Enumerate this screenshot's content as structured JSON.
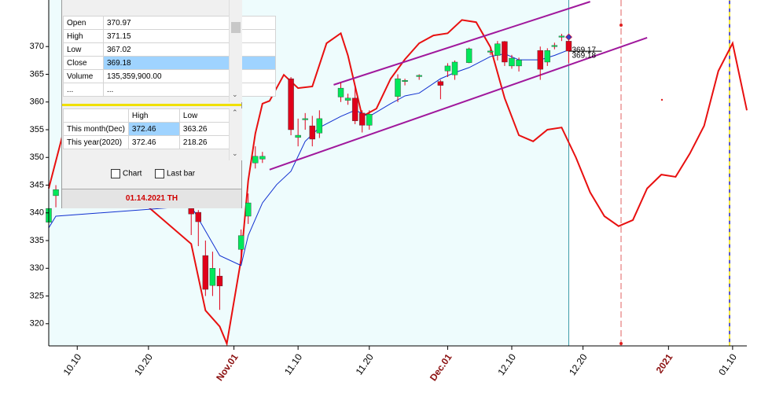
{
  "chart_data": {
    "type": "candlestick",
    "xlim": [
      "10.06",
      "01.12"
    ],
    "ylim": [
      316,
      378.4
    ],
    "yticks": [
      320,
      325,
      330,
      335,
      340,
      345,
      350,
      355,
      360,
      365,
      370
    ],
    "xticks": [
      "10.10",
      "10.20",
      {
        "value": "11.01",
        "label": "Nov.01"
      },
      "11.10",
      "11.20",
      {
        "value": "12.01",
        "label": "Dec.01"
      },
      "12.10",
      "12.20",
      {
        "value": "01.01",
        "label": "2021"
      },
      "01.10"
    ],
    "up_color": "#00e85a",
    "down_color": "#e0001a",
    "ohlc": {
      "x": [
        "10.06",
        "10.07",
        "10.26",
        "10.27",
        "10.28",
        "10.29",
        "10.30",
        "11.02",
        "11.03",
        "11.04",
        "11.05",
        "11.09",
        "11.10",
        "11.11",
        "11.12",
        "11.13",
        "11.16",
        "11.17",
        "11.18",
        "11.19",
        "11.20",
        "11.24",
        "11.25",
        "11.27",
        "11.30",
        "12.01",
        "12.02",
        "12.04",
        "12.07",
        "12.08",
        "12.09",
        "12.10",
        "12.11",
        "12.14",
        "12.15",
        "12.16",
        "12.17",
        "12.18"
      ],
      "open": [
        338.3,
        343.1,
        340.8,
        340.1,
        332.3,
        326.9,
        328.6,
        333.4,
        339.4,
        349.0,
        349.7,
        364.2,
        353.6,
        356.8,
        355.7,
        354.4,
        360.9,
        360.3,
        360.7,
        358.0,
        355.8,
        361.0,
        363.7,
        364.6,
        363.7,
        365.6,
        364.9,
        367.1,
        369.0,
        368.4,
        370.9,
        366.5,
        366.5,
        369.3,
        367.2,
        370.0,
        371.7,
        370.97
      ],
      "high": [
        342.0,
        345.0,
        341.5,
        340.5,
        335.0,
        333.0,
        330.0,
        337.0,
        343.5,
        352.0,
        351.0,
        364.5,
        357.0,
        358.0,
        357.5,
        358.5,
        363.5,
        361.5,
        363.0,
        358.5,
        358.5,
        365.0,
        364.2,
        365.0,
        364.0,
        367.0,
        367.5,
        369.8,
        369.5,
        371.0,
        371.0,
        368.5,
        368.0,
        370.0,
        369.7,
        370.7,
        372.3,
        371.15
      ],
      "low": [
        337.0,
        341.0,
        336.0,
        334.0,
        325.0,
        325.0,
        322.5,
        331.0,
        338.0,
        348.0,
        349.0,
        354.0,
        352.0,
        355.0,
        352.0,
        353.5,
        360.0,
        359.5,
        356.0,
        354.5,
        355.0,
        360.0,
        363.0,
        364.0,
        360.5,
        364.5,
        364.0,
        367.0,
        368.5,
        367.5,
        366.5,
        366.0,
        365.5,
        364.0,
        366.5,
        369.5,
        371.0,
        367.02
      ],
      "close": [
        340.8,
        344.2,
        339.8,
        338.4,
        326.2,
        330.0,
        326.8,
        335.9,
        341.8,
        350.2,
        350.2,
        355.0,
        354.0,
        357.0,
        353.3,
        357.0,
        362.5,
        360.7,
        356.6,
        355.8,
        357.8,
        364.2,
        363.9,
        364.8,
        363.0,
        366.5,
        367.2,
        369.6,
        369.2,
        370.5,
        367.2,
        367.9,
        367.6,
        365.9,
        369.3,
        370.2,
        371.9,
        369.18
      ]
    },
    "lines": [
      {
        "color": "#e81010",
        "width": 2,
        "x": [
          "10.06",
          "10.08",
          "10.26",
          "10.28",
          "10.30",
          "10.31",
          "11.02",
          "11.03",
          "11.04",
          "11.05",
          "11.06",
          "11.08",
          "11.10",
          "11.12",
          "11.14",
          "11.16",
          "11.17",
          "11.19",
          "11.21",
          "11.23",
          "11.25",
          "11.27",
          "11.29",
          "12.01",
          "12.03",
          "12.05",
          "12.07",
          "12.09",
          "12.11",
          "12.13",
          "12.15",
          "12.17",
          "12.19",
          "12.21",
          "12.23",
          "12.25",
          "12.27",
          "12.29",
          "12.31",
          "01.02",
          "01.04",
          "01.06",
          "01.08",
          "01.10",
          "01.12"
        ],
        "values": [
          344.4,
          354.3,
          334.4,
          322.4,
          319.5,
          316.4,
          331.6,
          345.8,
          354.3,
          359.7,
          360.2,
          364.9,
          362.5,
          362.8,
          370.6,
          372.4,
          368.4,
          357.4,
          358.8,
          364.2,
          367.7,
          370.6,
          372.0,
          372.4,
          374.8,
          374.4,
          369.9,
          360.7,
          354.0,
          352.9,
          355.0,
          355.4,
          350.0,
          343.7,
          339.4,
          337.6,
          338.7,
          344.4,
          346.9,
          346.5,
          350.7,
          355.7,
          365.6,
          370.6,
          358.5
        ]
      },
      {
        "color": "#1030d0",
        "width": 1,
        "x": [
          "10.06",
          "10.07",
          "10.26",
          "10.30",
          "11.02",
          "11.03",
          "11.05",
          "11.07",
          "11.09",
          "11.11",
          "11.13",
          "11.16",
          "11.18",
          "11.20",
          "11.23",
          "11.25",
          "11.27",
          "11.30",
          "12.02",
          "12.04",
          "12.07",
          "12.09",
          "12.11",
          "12.14",
          "12.16",
          "12.18"
        ],
        "values": [
          337.3,
          339.4,
          341.2,
          332.3,
          330.5,
          335.9,
          341.8,
          345.1,
          347.5,
          352.9,
          355.4,
          357.4,
          358.5,
          357.4,
          359.7,
          361.1,
          361.6,
          364.2,
          365.3,
          366.2,
          368.2,
          368.7,
          367.6,
          367.6,
          368.4,
          369.4
        ]
      },
      {
        "color": "#a0189c",
        "width": 2,
        "x": [
          "11.15",
          "12.21"
        ],
        "values": [
          363.1,
          378.1
        ]
      },
      {
        "color": "#a0189c",
        "width": 2,
        "x": [
          "11.06",
          "12.29"
        ],
        "values": [
          347.8,
          371.6
        ]
      }
    ],
    "price_labels": [
      369.17,
      369.18
    ]
  },
  "panel": {
    "rows": [
      [
        "Open",
        "370.97"
      ],
      [
        "High",
        "371.15"
      ],
      [
        "Low",
        "367.02"
      ],
      [
        "Close",
        "369.18"
      ],
      [
        "Volume",
        "135,359,900.00"
      ],
      [
        "...",
        "..."
      ]
    ],
    "stats_header": [
      "High",
      "Low"
    ],
    "stats_rows": [
      [
        "This month(Dec)",
        "372.46",
        "363.26"
      ],
      [
        "This year(2020)",
        "372.46",
        "218.26"
      ]
    ],
    "checkboxes": [
      "Chart",
      "Last bar"
    ],
    "footer": "01.14.2021 TH"
  }
}
